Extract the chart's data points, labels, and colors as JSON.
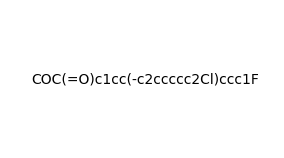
{
  "smiles": "COC(=O)c1cc(-c2ccccc2Cl)ccc1F",
  "title": "",
  "background_color": "#ffffff",
  "figsize": [
    2.84,
    1.58
  ],
  "dpi": 100
}
